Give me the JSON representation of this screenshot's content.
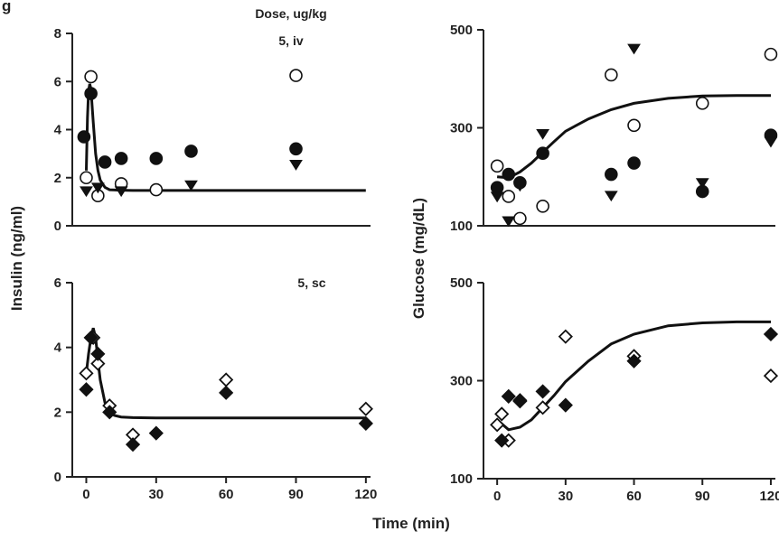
{
  "figure": {
    "xlabel": "Time (min)",
    "ylabel_left": "Insulin (ng/ml)",
    "ylabel_right": "Glucose (mg/dL)",
    "corner_glyph": "g"
  },
  "chart_data": [
    {
      "id": "insulin-iv",
      "type": "scatter",
      "annotation": [
        "Dose, ug/kg",
        "5, iv"
      ],
      "xlabel": "",
      "ylabel": "Insulin (ng/ml)",
      "xlim": [
        -6,
        122
      ],
      "ylim": [
        0,
        8
      ],
      "yticks": [
        0,
        2,
        4,
        6,
        8
      ],
      "xticks": [],
      "grid": false,
      "series": [
        {
          "marker": "open-circle",
          "x": [
            0,
            2,
            5,
            15,
            30,
            90
          ],
          "y": [
            2.0,
            6.2,
            1.25,
            1.75,
            1.5,
            6.25
          ]
        },
        {
          "marker": "filled-circle",
          "x": [
            -1,
            2,
            8,
            15,
            30,
            45,
            90
          ],
          "y": [
            3.7,
            5.5,
            2.65,
            2.8,
            2.8,
            3.1,
            3.2
          ]
        },
        {
          "marker": "filled-triangle-down",
          "x": [
            0,
            5,
            15,
            45,
            90
          ],
          "y": [
            1.45,
            1.6,
            1.45,
            1.7,
            2.55
          ]
        },
        {
          "marker": "fit-line",
          "x": [
            0,
            0.5,
            1,
            1.5,
            2,
            3,
            4,
            5,
            6,
            8,
            10,
            15,
            20,
            30,
            45,
            60,
            90,
            120
          ],
          "y": [
            2.3,
            4.5,
            5.6,
            5.9,
            5.7,
            4.3,
            3.0,
            2.3,
            1.9,
            1.6,
            1.5,
            1.48,
            1.47,
            1.47,
            1.47,
            1.47,
            1.47,
            1.47
          ]
        }
      ]
    },
    {
      "id": "insulin-sc",
      "type": "scatter",
      "annotation": [
        "5, sc"
      ],
      "xlabel": "",
      "ylabel": "Insulin (ng/ml)",
      "xlim": [
        -6,
        122
      ],
      "ylim": [
        0,
        6
      ],
      "yticks": [
        0,
        2,
        4,
        6
      ],
      "xticks": [
        0,
        30,
        60,
        90,
        120
      ],
      "grid": false,
      "series": [
        {
          "marker": "open-diamond",
          "x": [
            0,
            3,
            5,
            10,
            20,
            60,
            120
          ],
          "y": [
            3.2,
            4.3,
            3.5,
            2.2,
            1.3,
            3.0,
            2.1
          ]
        },
        {
          "marker": "filled-diamond",
          "x": [
            0,
            2,
            5,
            10,
            20,
            30,
            60,
            120
          ],
          "y": [
            2.7,
            4.3,
            3.8,
            2.0,
            1.0,
            1.35,
            2.6,
            1.65
          ]
        },
        {
          "marker": "fit-line",
          "x": [
            0,
            1,
            2,
            3,
            4,
            5,
            6,
            8,
            10,
            12,
            15,
            20,
            30,
            45,
            60,
            90,
            120
          ],
          "y": [
            3.2,
            3.8,
            4.3,
            4.6,
            4.3,
            3.6,
            3.0,
            2.3,
            2.0,
            1.9,
            1.85,
            1.83,
            1.82,
            1.82,
            1.82,
            1.82,
            1.82
          ]
        }
      ]
    },
    {
      "id": "glucose-iv",
      "type": "scatter",
      "annotation": [],
      "xlabel": "",
      "ylabel": "Glucose (mg/dL)",
      "xlim": [
        -6,
        122
      ],
      "ylim": [
        100,
        500
      ],
      "yticks": [
        100,
        300,
        500
      ],
      "xticks": [],
      "grid": false,
      "series": [
        {
          "marker": "open-circle",
          "x": [
            0,
            5,
            10,
            20,
            50,
            60,
            90,
            120
          ],
          "y": [
            222,
            160,
            115,
            140,
            408,
            305,
            350,
            450
          ]
        },
        {
          "marker": "filled-circle",
          "x": [
            0,
            5,
            10,
            20,
            50,
            60,
            90,
            120
          ],
          "y": [
            178,
            205,
            188,
            248,
            205,
            228,
            170,
            285
          ]
        },
        {
          "marker": "filled-triangle-down",
          "x": [
            0,
            5,
            10,
            20,
            50,
            60,
            90,
            120
          ],
          "y": [
            160,
            110,
            182,
            288,
            162,
            462,
            188,
            272
          ]
        },
        {
          "marker": "fit-line",
          "x": [
            0,
            5,
            10,
            15,
            20,
            25,
            30,
            40,
            50,
            60,
            75,
            90,
            105,
            120
          ],
          "y": [
            200,
            198,
            210,
            228,
            250,
            272,
            293,
            318,
            337,
            350,
            360,
            365,
            366,
            366
          ]
        }
      ]
    },
    {
      "id": "glucose-sc",
      "type": "scatter",
      "annotation": [],
      "xlabel": "",
      "ylabel": "Glucose (mg/dL)",
      "xlim": [
        -6,
        122
      ],
      "ylim": [
        100,
        500
      ],
      "yticks": [
        100,
        300,
        500
      ],
      "xticks": [
        0,
        30,
        60,
        90,
        120
      ],
      "grid": false,
      "series": [
        {
          "marker": "open-diamond",
          "x": [
            0,
            2,
            5,
            10,
            20,
            30,
            60,
            120
          ],
          "y": [
            210,
            232,
            178,
            258,
            245,
            390,
            350,
            310
          ]
        },
        {
          "marker": "filled-diamond",
          "x": [
            2,
            5,
            10,
            20,
            30,
            60,
            120
          ],
          "y": [
            178,
            268,
            260,
            278,
            250,
            340,
            395
          ]
        },
        {
          "marker": "fit-line",
          "x": [
            0,
            5,
            10,
            15,
            20,
            25,
            30,
            40,
            50,
            60,
            75,
            90,
            105,
            120
          ],
          "y": [
            220,
            200,
            205,
            220,
            245,
            270,
            298,
            340,
            375,
            395,
            412,
            418,
            420,
            420
          ]
        }
      ]
    }
  ]
}
